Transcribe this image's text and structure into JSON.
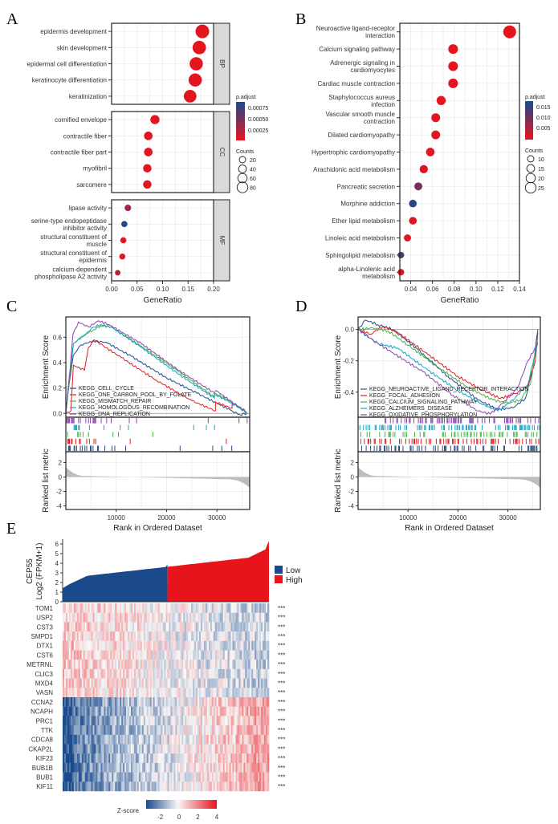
{
  "panels": {
    "A": "A",
    "B": "B",
    "C": "C",
    "D": "D",
    "E": "E"
  },
  "chart_data": [
    {
      "id": "A",
      "type": "scatter",
      "title": "",
      "xlabel": "GeneRatio",
      "xlim": [
        0,
        0.2
      ],
      "xticks": [
        "0.00",
        "0.05",
        "0.10",
        "0.15",
        "0.20"
      ],
      "facets": [
        {
          "name": "BP",
          "terms": [
            {
              "label": [
                "epidermis development"
              ],
              "x": 0.178,
              "count": 90,
              "padj": 2e-05
            },
            {
              "label": [
                "skin development"
              ],
              "x": 0.172,
              "count": 88,
              "padj": 2e-05
            },
            {
              "label": [
                "epidermal cell differentiation"
              ],
              "x": 0.166,
              "count": 86,
              "padj": 2e-05
            },
            {
              "label": [
                "keratinocyte differentiation"
              ],
              "x": 0.164,
              "count": 85,
              "padj": 2e-05
            },
            {
              "label": [
                "keratinization"
              ],
              "x": 0.154,
              "count": 80,
              "padj": 2e-05
            }
          ]
        },
        {
          "name": "CC",
          "terms": [
            {
              "label": [
                "cornified envelope"
              ],
              "x": 0.085,
              "count": 44,
              "padj": 3e-05
            },
            {
              "label": [
                "contractile fiber"
              ],
              "x": 0.072,
              "count": 38,
              "padj": 3e-05
            },
            {
              "label": [
                "contractile fiber part"
              ],
              "x": 0.072,
              "count": 38,
              "padj": 3e-05
            },
            {
              "label": [
                "myofibril"
              ],
              "x": 0.07,
              "count": 37,
              "padj": 3e-05
            },
            {
              "label": [
                "sarcomere"
              ],
              "x": 0.07,
              "count": 37,
              "padj": 3e-05
            }
          ]
        },
        {
          "name": "MF",
          "terms": [
            {
              "label": [
                "lipase activity"
              ],
              "x": 0.032,
              "count": 17,
              "padj": 0.0003
            },
            {
              "label": [
                "serine-type endopeptidase",
                "inhibitor activity"
              ],
              "x": 0.025,
              "count": 14,
              "padj": 0.00085
            },
            {
              "label": [
                "structural constituent of",
                "muscle"
              ],
              "x": 0.023,
              "count": 13,
              "padj": 5e-05
            },
            {
              "label": [
                "structural constituent of",
                "epidermis"
              ],
              "x": 0.021,
              "count": 12,
              "padj": 5e-05
            },
            {
              "label": [
                "calcium-dependent",
                "phospholipase A2 activity"
              ],
              "x": 0.012,
              "count": 7,
              "padj": 0.0002
            }
          ]
        }
      ],
      "legend_color": {
        "title": "p.adjust",
        "ticks": [
          "0.00075",
          "0.00050",
          "0.00025"
        ],
        "range": [
          0,
          0.00088
        ]
      },
      "legend_size": {
        "title": "Counts",
        "ticks": [
          "20",
          "40",
          "60",
          "80"
        ]
      }
    },
    {
      "id": "B",
      "type": "scatter",
      "title": "",
      "xlabel": "GeneRatio",
      "xlim": [
        0.03,
        0.14
      ],
      "xticks": [
        "0.04",
        "0.06",
        "0.08",
        "0.10",
        "0.12",
        "0.14"
      ],
      "terms": [
        {
          "label": [
            "Neuroactive ligand-receptor",
            "interaction"
          ],
          "x": 0.131,
          "count": 28,
          "padj": 0.0001
        },
        {
          "label": [
            "Calcium signaling pathway"
          ],
          "x": 0.079,
          "count": 17,
          "padj": 0.0002
        },
        {
          "label": [
            "Adrenergic signaling in",
            "cardiomyocytes"
          ],
          "x": 0.079,
          "count": 17,
          "padj": 0.0002
        },
        {
          "label": [
            "Cardiac muscle contraction"
          ],
          "x": 0.079,
          "count": 17,
          "padj": 0.0002
        },
        {
          "label": [
            "Staphylococcus aureus",
            "infection"
          ],
          "x": 0.068,
          "count": 15,
          "padj": 0.0003
        },
        {
          "label": [
            "Vascular smooth muscle",
            "contraction"
          ],
          "x": 0.063,
          "count": 14,
          "padj": 0.0005
        },
        {
          "label": [
            "Dilated cardiomyopathy"
          ],
          "x": 0.063,
          "count": 14,
          "padj": 0.0005
        },
        {
          "label": [
            "Hypertrophic cardiomyopathy"
          ],
          "x": 0.058,
          "count": 13,
          "padj": 0.0006
        },
        {
          "label": [
            "Arachidonic acid metabolism"
          ],
          "x": 0.052,
          "count": 12,
          "padj": 0.0008
        },
        {
          "label": [
            "Pancreatic secretion"
          ],
          "x": 0.047,
          "count": 11,
          "padj": 0.011
        },
        {
          "label": [
            "Morphine addiction"
          ],
          "x": 0.042,
          "count": 10,
          "padj": 0.018
        },
        {
          "label": [
            "Ether lipid metabolism"
          ],
          "x": 0.042,
          "count": 10,
          "padj": 0.001
        },
        {
          "label": [
            "Linoleic acid metabolism"
          ],
          "x": 0.037,
          "count": 8,
          "padj": 0.0012
        },
        {
          "label": [
            "Sphingolipid metabolism"
          ],
          "x": 0.031,
          "count": 6,
          "padj": 0.014
        },
        {
          "label": [
            "alpha-Linolenic acid",
            "metabolism"
          ],
          "x": 0.031,
          "count": 6,
          "padj": 0.0012
        }
      ],
      "legend_color": {
        "title": "p.adjust",
        "ticks": [
          "0.015",
          "0.010",
          "0.005"
        ],
        "range": [
          0,
          0.019
        ]
      },
      "legend_size": {
        "title": "Counts",
        "ticks": [
          "10",
          "15",
          "20",
          "25"
        ]
      }
    },
    {
      "id": "C",
      "type": "line",
      "ylabel": "Enrichment Score",
      "ylabel2": "Ranked list metric",
      "xlabel": "Rank in Ordered Dataset",
      "xlim": [
        0,
        36500
      ],
      "ylim": [
        -0.03,
        0.76
      ],
      "yticks": [
        "0.0",
        "0.2",
        "0.4",
        "0.6"
      ],
      "metric_ticks": [
        "2",
        "0",
        "-2",
        "-4"
      ],
      "xticks": [
        "10000",
        "20000",
        "30000"
      ],
      "series": [
        {
          "name": "KEGG_CELL_CYCLE",
          "color": "#1f4e8c",
          "points": [
            [
              0,
              0
            ],
            [
              600,
              0.22
            ],
            [
              1500,
              0.46
            ],
            [
              3000,
              0.54
            ],
            [
              5500,
              0.57
            ],
            [
              8000,
              0.56
            ],
            [
              13000,
              0.45
            ],
            [
              20000,
              0.28
            ],
            [
              26000,
              0.16
            ],
            [
              30000,
              0.08
            ],
            [
              33000,
              0.02
            ],
            [
              34500,
              -0.01
            ],
            [
              36000,
              0
            ]
          ]
        },
        {
          "name": "KEGG_ONE_CARBON_POOL_BY_FOLATE",
          "color": "#e31a1c",
          "points": [
            [
              0,
              0
            ],
            [
              1000,
              0.02
            ],
            [
              1500,
              0.38
            ],
            [
              3700,
              0.34
            ],
            [
              4500,
              0.52
            ],
            [
              5600,
              0.58
            ],
            [
              7500,
              0.53
            ],
            [
              11000,
              0.44
            ],
            [
              18000,
              0.26
            ],
            [
              25000,
              0.1
            ],
            [
              29700,
              0.02
            ],
            [
              29700,
              0.09
            ],
            [
              33000,
              0.04
            ],
            [
              33000,
              0.09
            ],
            [
              36000,
              0
            ]
          ]
        },
        {
          "name": "KEGG_MISMATCH_REPAIR",
          "color": "#4daf4a",
          "points": [
            [
              0,
              0
            ],
            [
              700,
              0.25
            ],
            [
              1500,
              0.55
            ],
            [
              3000,
              0.6
            ],
            [
              5500,
              0.66
            ],
            [
              7000,
              0.69
            ],
            [
              9000,
              0.68
            ],
            [
              15000,
              0.53
            ],
            [
              22000,
              0.34
            ],
            [
              29500,
              0.13
            ],
            [
              29500,
              0.16
            ],
            [
              33000,
              0.09
            ],
            [
              36000,
              0
            ]
          ]
        },
        {
          "name": "KEGG_HOMOLOGOUS_RECOMBINATION",
          "color": "#17a2c4",
          "points": [
            [
              0,
              0
            ],
            [
              700,
              0.3
            ],
            [
              1500,
              0.55
            ],
            [
              3500,
              0.61
            ],
            [
              5500,
              0.68
            ],
            [
              7000,
              0.7
            ],
            [
              9000,
              0.68
            ],
            [
              15000,
              0.52
            ],
            [
              22000,
              0.32
            ],
            [
              29500,
              0.12
            ],
            [
              29500,
              0.15
            ],
            [
              33000,
              0.08
            ],
            [
              36000,
              0
            ]
          ]
        },
        {
          "name": "KEGG_DNA_REPLICATION",
          "color": "#8e44ad",
          "points": [
            [
              0,
              0
            ],
            [
              800,
              0.32
            ],
            [
              1400,
              0.62
            ],
            [
              2500,
              0.72
            ],
            [
              4500,
              0.68
            ],
            [
              6500,
              0.73
            ],
            [
              8500,
              0.7
            ],
            [
              15000,
              0.55
            ],
            [
              22000,
              0.35
            ],
            [
              29500,
              0.16
            ],
            [
              29800,
              0.18
            ],
            [
              33000,
              0.09
            ],
            [
              36000,
              0.01
            ]
          ]
        }
      ]
    },
    {
      "id": "D",
      "type": "line",
      "ylabel": "Enrichment Score",
      "ylabel2": "Ranked list metric",
      "xlabel": "Rank in Ordered Dataset",
      "xlim": [
        0,
        36500
      ],
      "ylim": [
        -0.56,
        0.08
      ],
      "yticks": [
        "0.0",
        "-0.2",
        "-0.4"
      ],
      "metric_ticks": [
        "2",
        "0",
        "-2",
        "-4"
      ],
      "xticks": [
        "10000",
        "20000",
        "30000"
      ],
      "series": [
        {
          "name": "KEGG_NEUROACTIVE_LIGAND_RECEPTOR_INTERACTION",
          "color": "#1f4e8c",
          "points": [
            [
              0,
              0
            ],
            [
              1500,
              0.06
            ],
            [
              4000,
              0.03
            ],
            [
              7000,
              0.0
            ],
            [
              12000,
              -0.13
            ],
            [
              18000,
              -0.3
            ],
            [
              24000,
              -0.45
            ],
            [
              28000,
              -0.51
            ],
            [
              31000,
              -0.5
            ],
            [
              33500,
              -0.44
            ],
            [
              35000,
              -0.25
            ],
            [
              36000,
              0
            ]
          ]
        },
        {
          "name": "KEGG_FOCAL_ADHESION",
          "color": "#e31a1c",
          "points": [
            [
              0,
              0
            ],
            [
              2500,
              -0.03
            ],
            [
              5000,
              0.02
            ],
            [
              8000,
              -0.02
            ],
            [
              14000,
              -0.16
            ],
            [
              20000,
              -0.3
            ],
            [
              25000,
              -0.39
            ],
            [
              28500,
              -0.44
            ],
            [
              31500,
              -0.41
            ],
            [
              34000,
              -0.36
            ],
            [
              35500,
              -0.2
            ],
            [
              36000,
              -0.02
            ]
          ]
        },
        {
          "name": "KEGG_CALCIUM_SIGNALING_PATHWAY",
          "color": "#4daf4a",
          "points": [
            [
              0,
              0
            ],
            [
              3000,
              0.01
            ],
            [
              6000,
              -0.01
            ],
            [
              10000,
              -0.1
            ],
            [
              16000,
              -0.24
            ],
            [
              22000,
              -0.37
            ],
            [
              27000,
              -0.45
            ],
            [
              30000,
              -0.47
            ],
            [
              32500,
              -0.45
            ],
            [
              34500,
              -0.35
            ],
            [
              36000,
              -0.05
            ]
          ]
        },
        {
          "name": "KEGG_ALZHEIMERS_DISEASE",
          "color": "#17a2c4",
          "points": [
            [
              0,
              0
            ],
            [
              4000,
              -0.09
            ],
            [
              8000,
              -0.12
            ],
            [
              14000,
              -0.26
            ],
            [
              20000,
              -0.39
            ],
            [
              25000,
              -0.48
            ],
            [
              28000,
              -0.52
            ],
            [
              31000,
              -0.45
            ],
            [
              34000,
              -0.35
            ],
            [
              36000,
              -0.08
            ]
          ]
        },
        {
          "name": "KEGG_OXIDATIVE_PHOSPHORYLATION",
          "color": "#8e44ad",
          "points": [
            [
              0,
              0
            ],
            [
              3000,
              -0.07
            ],
            [
              7000,
              -0.15
            ],
            [
              13000,
              -0.27
            ],
            [
              19000,
              -0.42
            ],
            [
              24000,
              -0.52
            ],
            [
              26500,
              -0.54
            ],
            [
              29000,
              -0.47
            ],
            [
              32000,
              -0.37
            ],
            [
              34000,
              -0.2
            ],
            [
              36000,
              -0.09
            ]
          ]
        }
      ]
    },
    {
      "id": "E",
      "type": "heatmap",
      "ylabel_line1": "CEP55",
      "ylabel_line2": "Log2 (FPKM+1)",
      "yticks": [
        "0",
        "1",
        "2",
        "3",
        "4",
        "5",
        "6"
      ],
      "ylim": [
        0,
        6.5
      ],
      "groups": [
        {
          "name": "Low",
          "color": "#1a4a8c"
        },
        {
          "name": "High",
          "color": "#e8141c"
        }
      ],
      "genes": [
        "TOM1",
        "USP2",
        "CST3",
        "SMPD1",
        "DTX1",
        "CST6",
        "METRNL",
        "CLIC3",
        "MXD4",
        "VASN",
        "CCNA2",
        "NCAPH",
        "PRC1",
        "TTK",
        "CDCA8",
        "CKAP2L",
        "KIF23",
        "BUB1B",
        "BUB1",
        "KIF11"
      ],
      "gene_trend": [
        -1,
        -1,
        -1,
        -1,
        -1,
        -1,
        -1,
        -1,
        -1,
        -1,
        1,
        1,
        1,
        1,
        1,
        1,
        1,
        1,
        1,
        1
      ],
      "significance": "***",
      "zscore_legend": {
        "title": "Z-score",
        "ticks": [
          "-2",
          "0",
          "2",
          "4"
        ],
        "range": [
          -3.5,
          4
        ]
      }
    }
  ]
}
